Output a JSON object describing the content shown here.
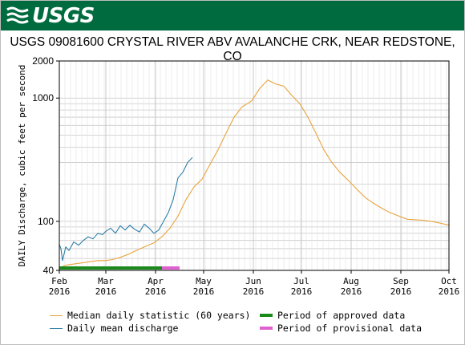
{
  "header": {
    "logo_text": "USGS"
  },
  "colors": {
    "banner": "#006b3f",
    "median": "#e8a33c",
    "mean": "#2e7fa8",
    "approved": "#1a8a1a",
    "provisional": "#e060d0",
    "grid": "#c8c8c8"
  },
  "chart_data": {
    "type": "line",
    "title": "USGS 09081600 CRYSTAL RIVER ABV AVALANCHE CRK, NEAR REDSTONE, CO",
    "ylabel": "DAILY Discharge, cubic feet per second",
    "xlabel": "",
    "yscale": "log",
    "ylim": [
      40,
      2000
    ],
    "y_tick_labels": [
      "40",
      "100",
      "1000",
      "2000"
    ],
    "x_tick_labels": [
      [
        "Feb",
        "2016"
      ],
      [
        "Mar",
        "2016"
      ],
      [
        "Apr",
        "2016"
      ],
      [
        "May",
        "2016"
      ],
      [
        "Jun",
        "2016"
      ],
      [
        "Jul",
        "2016"
      ],
      [
        "Aug",
        "2016"
      ],
      [
        "Sep",
        "2016"
      ],
      [
        "Oct",
        "2016"
      ]
    ],
    "x_start": "2016-02-01",
    "x_end": "2016-10-01",
    "grid": true,
    "legend_position": "bottom",
    "series": [
      {
        "name": "Median daily statistic (60 years)",
        "x": [
          "2016-02-01",
          "2016-02-05",
          "2016-02-10",
          "2016-02-15",
          "2016-02-20",
          "2016-02-25",
          "2016-03-01",
          "2016-03-05",
          "2016-03-10",
          "2016-03-15",
          "2016-03-20",
          "2016-03-25",
          "2016-03-31",
          "2016-04-05",
          "2016-04-10",
          "2016-04-15",
          "2016-04-20",
          "2016-04-25",
          "2016-04-30",
          "2016-05-05",
          "2016-05-10",
          "2016-05-15",
          "2016-05-20",
          "2016-05-25",
          "2016-05-31",
          "2016-06-05",
          "2016-06-10",
          "2016-06-15",
          "2016-06-20",
          "2016-06-25",
          "2016-06-30",
          "2016-07-05",
          "2016-07-10",
          "2016-07-15",
          "2016-07-20",
          "2016-07-25",
          "2016-07-31",
          "2016-08-05",
          "2016-08-10",
          "2016-08-15",
          "2016-08-20",
          "2016-08-25",
          "2016-08-31",
          "2016-09-05",
          "2016-09-10",
          "2016-09-15",
          "2016-09-20",
          "2016-09-25",
          "2016-10-01"
        ],
        "y": [
          42,
          44,
          45,
          46,
          47,
          48,
          48,
          49,
          51,
          54,
          58,
          62,
          67,
          75,
          88,
          110,
          150,
          190,
          220,
          290,
          380,
          520,
          700,
          850,
          950,
          1200,
          1400,
          1300,
          1250,
          1050,
          900,
          700,
          520,
          380,
          300,
          250,
          210,
          180,
          155,
          140,
          128,
          118,
          110,
          104,
          103,
          102,
          100,
          97,
          93
        ]
      },
      {
        "name": "Daily mean discharge",
        "x": [
          "2016-02-01",
          "2016-02-02",
          "2016-02-03",
          "2016-02-05",
          "2016-02-07",
          "2016-02-10",
          "2016-02-13",
          "2016-02-16",
          "2016-02-19",
          "2016-02-22",
          "2016-02-25",
          "2016-02-28",
          "2016-03-01",
          "2016-03-04",
          "2016-03-07",
          "2016-03-10",
          "2016-03-13",
          "2016-03-16",
          "2016-03-19",
          "2016-03-22",
          "2016-03-25",
          "2016-03-28",
          "2016-03-31",
          "2016-04-03",
          "2016-04-06",
          "2016-04-09",
          "2016-04-12",
          "2016-04-15",
          "2016-04-18",
          "2016-04-21",
          "2016-04-24"
        ],
        "y": [
          65,
          60,
          48,
          62,
          58,
          68,
          64,
          70,
          75,
          72,
          80,
          78,
          83,
          88,
          80,
          92,
          85,
          93,
          86,
          82,
          95,
          88,
          80,
          85,
          100,
          118,
          150,
          225,
          250,
          300,
          330
        ]
      },
      {
        "name": "Period of approved data",
        "x": [
          "2016-02-01",
          "2016-04-05"
        ]
      },
      {
        "name": "Period of provisional data",
        "x": [
          "2016-04-05",
          "2016-04-16"
        ]
      }
    ]
  }
}
